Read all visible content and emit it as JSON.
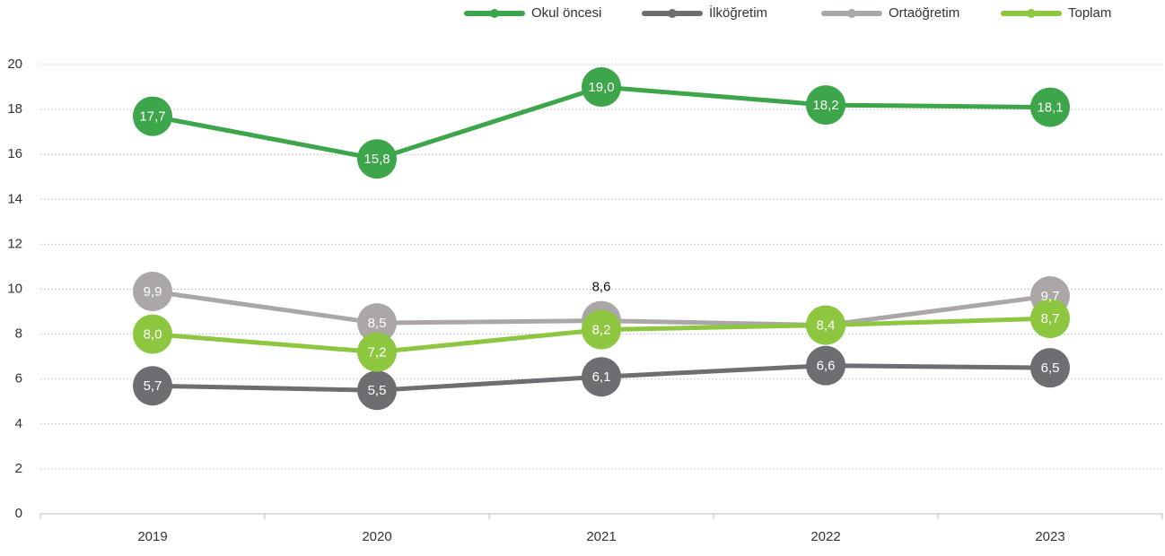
{
  "chart_data": {
    "type": "line",
    "categories": [
      "2019",
      "2020",
      "2021",
      "2022",
      "2023"
    ],
    "series": [
      {
        "name": "Okul öncesi",
        "color": "#3da54a",
        "values": [
          17.7,
          15.8,
          19.0,
          18.2,
          18.1
        ],
        "value_labels": [
          "17,7",
          "15,8",
          "19,0",
          "18,2",
          "18,1"
        ]
      },
      {
        "name": "İlköğretim",
        "color": "#6d6e71",
        "values": [
          5.7,
          5.5,
          6.1,
          6.6,
          6.5
        ],
        "value_labels": [
          "5,7",
          "5,5",
          "6,1",
          "6,6",
          "6,5"
        ]
      },
      {
        "name": "Ortaöğretim",
        "color": "#aba7a7",
        "values": [
          9.9,
          8.5,
          8.6,
          8.4,
          9.7
        ],
        "value_labels": [
          "9,9",
          "8,5",
          "8,6",
          null,
          "9,7"
        ]
      },
      {
        "name": "Toplam",
        "color": "#8dc63f",
        "values": [
          8.0,
          7.2,
          8.2,
          8.4,
          8.7
        ],
        "value_labels": [
          "8,0",
          "7,2",
          "8,2",
          "8,4",
          "8,7"
        ]
      }
    ],
    "ylim": [
      0,
      20
    ],
    "yticks": [
      0,
      2,
      4,
      6,
      8,
      10,
      12,
      14,
      16,
      18,
      20
    ],
    "grid": true,
    "legend": "top"
  }
}
